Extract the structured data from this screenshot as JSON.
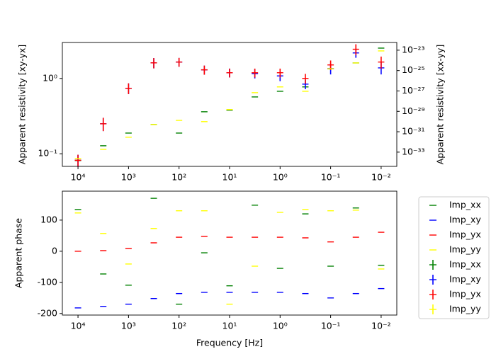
{
  "chart_data": [
    {
      "type": "errorbar",
      "xlog": true,
      "ylog": true,
      "y2log": true,
      "ylabel": "Apparent resistivity [xy-yx]",
      "y2label": "Apparent resistivity [xx-yy]",
      "x": [
        10000,
        3162,
        1000,
        316.2,
        100,
        31.62,
        10,
        3.162,
        1,
        0.3162,
        0.1,
        0.03162,
        0.01
      ],
      "xlim": [
        20400,
        0.0049
      ],
      "xticks": [
        {
          "value": 10000,
          "label": "10⁴"
        },
        {
          "value": 1000,
          "label": "10³"
        },
        {
          "value": 100,
          "label": "10²"
        },
        {
          "value": 10,
          "label": "10¹"
        },
        {
          "value": 1,
          "label": "10⁰"
        },
        {
          "value": 0.1,
          "label": "10⁻¹"
        },
        {
          "value": 0.01,
          "label": "10⁻²"
        }
      ],
      "ylim": [
        0.068,
        3.0
      ],
      "yticks": [
        {
          "value": 0.1,
          "label": "10⁻¹"
        },
        {
          "value": 1,
          "label": "10⁰"
        }
      ],
      "y2lim": [
        4e-35,
        5.7e-23
      ],
      "y2ticks": [
        {
          "value": 1e-33,
          "label": "10⁻³³"
        },
        {
          "value": 1e-31,
          "label": "10⁻³¹"
        },
        {
          "value": 1e-29,
          "label": "10⁻²⁹"
        },
        {
          "value": 1e-27,
          "label": "10⁻²⁷"
        },
        {
          "value": 1e-25,
          "label": "10⁻²⁵"
        },
        {
          "value": 1e-23,
          "label": "10⁻²³"
        }
      ],
      "series": [
        {
          "name": "Imp_xx",
          "color": "green",
          "axis": "y2",
          "values": [
            1.5e-34,
            4.2e-33,
            7.4e-32,
            5.1e-31,
            7.4e-32,
            9.1e-30,
            1.3e-29,
            2.6e-28,
            9.3e-28,
            2.5e-27,
            1.5e-25,
            5.6e-25,
            1.6e-23
          ]
        },
        {
          "name": "Imp_xy",
          "color": "blue",
          "values": [
            0.082,
            0.25,
            0.74,
            1.61,
            1.65,
            1.3,
            1.19,
            1.16,
            1.08,
            0.84,
            1.35,
            2.18,
            1.38
          ],
          "errors": [
            0.015,
            0.05,
            0.12,
            0.25,
            0.22,
            0.18,
            0.16,
            0.16,
            0.16,
            0.12,
            0.22,
            0.3,
            0.25
          ]
        },
        {
          "name": "Imp_yx",
          "color": "red",
          "values": [
            0.082,
            0.25,
            0.74,
            1.61,
            1.65,
            1.3,
            1.19,
            1.19,
            1.19,
            1.0,
            1.51,
            2.44,
            1.65
          ],
          "errors": [
            0.015,
            0.05,
            0.12,
            0.25,
            0.22,
            0.18,
            0.16,
            0.16,
            0.16,
            0.15,
            0.22,
            0.4,
            0.3
          ]
        },
        {
          "name": "Imp_yy",
          "color": "yellow",
          "axis": "y2",
          "values": [
            2.3e-34,
            1.9e-33,
            2.9e-32,
            5.1e-31,
            1.3e-30,
            9.8e-31,
            1.5e-29,
            6.8e-28,
            2.5e-27,
            9.3e-28,
            1.5e-25,
            5.6e-25,
            8.5e-24
          ]
        }
      ]
    },
    {
      "type": "errorbar",
      "xlog": true,
      "xlabel": "Frequency [Hz]",
      "ylabel": "Apparent phase",
      "x": [
        10000,
        3162,
        1000,
        316.2,
        100,
        31.62,
        10,
        3.162,
        1,
        0.3162,
        0.1,
        0.03162,
        0.01
      ],
      "xlim": [
        20400,
        0.0049
      ],
      "xticks": [
        {
          "value": 10000,
          "label": "10⁴"
        },
        {
          "value": 1000,
          "label": "10³"
        },
        {
          "value": 100,
          "label": "10²"
        },
        {
          "value": 10,
          "label": "10¹"
        },
        {
          "value": 1,
          "label": "10⁰"
        },
        {
          "value": 0.1,
          "label": "10⁻¹"
        },
        {
          "value": 0.01,
          "label": "10⁻²"
        }
      ],
      "ylim": [
        -205,
        193
      ],
      "yticks": [
        -200,
        -100,
        0,
        100
      ],
      "series": [
        {
          "name": "Imp_xx",
          "color": "green",
          "values": [
            134,
            -73,
            -109,
            170,
            -170,
            -5,
            -111,
            148,
            -55,
            120,
            -48,
            139,
            -45
          ]
        },
        {
          "name": "Imp_xy",
          "color": "blue",
          "values": [
            -182,
            -177,
            -170,
            -152,
            -136,
            -132,
            -132,
            -132,
            -132,
            -136,
            -150,
            -136,
            -120
          ]
        },
        {
          "name": "Imp_yx",
          "color": "red",
          "values": [
            0,
            2,
            9,
            27,
            45,
            48,
            45,
            45,
            45,
            43,
            30,
            45,
            61
          ]
        },
        {
          "name": "Imp_yy",
          "color": "yellow",
          "values": [
            123,
            57,
            -41,
            73,
            130,
            130,
            -170,
            -48,
            125,
            134,
            130,
            132,
            -57
          ]
        }
      ]
    }
  ]
}
